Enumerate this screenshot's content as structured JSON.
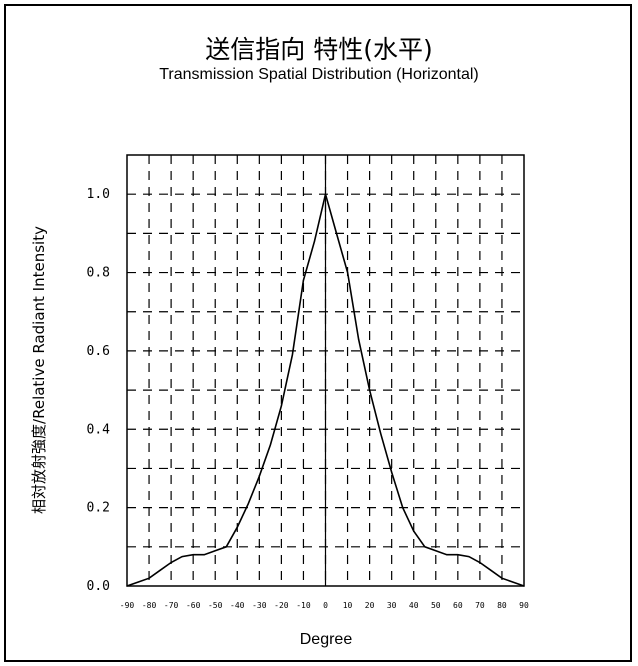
{
  "chart_data": {
    "type": "line",
    "title": "送信指向 特性(水平)",
    "subtitle": "Transmission Spatial Distribution (Horizontal)",
    "xlabel": "Degree",
    "ylabel": "相対放射強度/Relative Radiant Intensity",
    "xlim": [
      -90,
      90
    ],
    "ylim": [
      0,
      1.1
    ],
    "xticks": [
      -90,
      -80,
      -70,
      -60,
      -50,
      -40,
      -30,
      -20,
      -10,
      0,
      10,
      20,
      30,
      40,
      50,
      60,
      70,
      80,
      90
    ],
    "yticks": [
      "0.0",
      "0.2",
      "0.4",
      "0.6",
      "0.8",
      "1.0"
    ],
    "grid": true,
    "series": [
      {
        "x": [
          -90,
          -85,
          -80,
          -75,
          -70,
          -65,
          -60,
          -55,
          -50,
          -45,
          -40,
          -35,
          -30,
          -25,
          -20,
          -15,
          -10,
          -5,
          0,
          5,
          10,
          15,
          20,
          25,
          30,
          35,
          40,
          45,
          50,
          55,
          60,
          65,
          70,
          75,
          80,
          85,
          90
        ],
        "values": [
          0.0,
          0.01,
          0.02,
          0.04,
          0.06,
          0.075,
          0.08,
          0.08,
          0.09,
          0.1,
          0.15,
          0.21,
          0.28,
          0.36,
          0.46,
          0.59,
          0.78,
          0.88,
          1.0,
          0.9,
          0.8,
          0.63,
          0.5,
          0.39,
          0.29,
          0.2,
          0.14,
          0.1,
          0.09,
          0.08,
          0.08,
          0.075,
          0.06,
          0.04,
          0.02,
          0.01,
          0.0
        ]
      }
    ]
  }
}
